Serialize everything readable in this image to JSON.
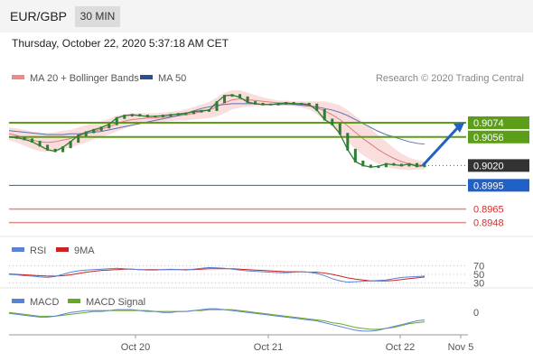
{
  "header": {
    "pair": "EUR/GBP",
    "timeframe": "30 MIN",
    "datetime": "Thursday, October 22, 2020 5:37:18 AM CET"
  },
  "legend": {
    "ma20_bb": "MA 20 + Bollinger Bands",
    "ma50": "MA 50",
    "research": "Research © 2020 Trading Central"
  },
  "colors": {
    "price": "#2e7d32",
    "ma20_band": "#f6c8c8",
    "ma20_line": "#e07c7c",
    "ma50": "#5b6fb5",
    "green_level": "#5c9e1a",
    "blue_level": "#2160c4",
    "red_level": "#e08a8a",
    "current": "#333333",
    "rsi": "#5b82d6",
    "ma9": "#cc2222",
    "macd": "#5b82d6",
    "macd_signal": "#66aa22"
  },
  "chart_data": [
    {
      "type": "line",
      "name": "price",
      "x_ticks": [
        "Oct 20",
        "Oct 21",
        "Oct 22",
        "Nov 5"
      ],
      "ylim": [
        0.8935,
        0.9115
      ],
      "price_series": [
        0.9056,
        0.9055,
        0.9053,
        0.905,
        0.9045,
        0.904,
        0.9038,
        0.9043,
        0.905,
        0.9058,
        0.9062,
        0.9065,
        0.9068,
        0.9072,
        0.908,
        0.9083,
        0.9084,
        0.9083,
        0.9082,
        0.9082,
        0.9083,
        0.9084,
        0.9085,
        0.9086,
        0.9088,
        0.9089,
        0.909,
        0.91,
        0.9108,
        0.9109,
        0.9106,
        0.91,
        0.9098,
        0.9097,
        0.9097,
        0.9098,
        0.9099,
        0.9098,
        0.9098,
        0.9097,
        0.909,
        0.9078,
        0.9072,
        0.906,
        0.904,
        0.9025,
        0.902,
        0.9018,
        0.9019,
        0.9022,
        0.9021,
        0.902,
        0.9022,
        0.9019,
        0.902
      ],
      "ma20_series": [
        0.906,
        0.9058,
        0.9055,
        0.9052,
        0.905,
        0.9049,
        0.905,
        0.9052,
        0.9054,
        0.9057,
        0.906,
        0.9063,
        0.9066,
        0.9069,
        0.9073,
        0.9076,
        0.9078,
        0.9079,
        0.908,
        0.908,
        0.9081,
        0.9082,
        0.9083,
        0.9084,
        0.9086,
        0.9088,
        0.909,
        0.9094,
        0.9099,
        0.9103,
        0.9104,
        0.9103,
        0.9102,
        0.9101,
        0.91,
        0.9099,
        0.9099,
        0.9098,
        0.9097,
        0.9096,
        0.9093,
        0.9089,
        0.9084,
        0.9078,
        0.907,
        0.9062,
        0.9054,
        0.9047,
        0.904,
        0.9034,
        0.9029,
        0.9025,
        0.9022,
        0.9021,
        0.902
      ],
      "band_width_series": [
        0.0008,
        0.0009,
        0.001,
        0.0011,
        0.0012,
        0.0012,
        0.0012,
        0.0012,
        0.0011,
        0.0011,
        0.0011,
        0.001,
        0.001,
        0.001,
        0.001,
        0.0009,
        0.0008,
        0.0007,
        0.0006,
        0.0006,
        0.0006,
        0.0006,
        0.0006,
        0.0007,
        0.0008,
        0.0009,
        0.001,
        0.0012,
        0.0013,
        0.0012,
        0.0011,
        0.0009,
        0.0007,
        0.0005,
        0.0004,
        0.0003,
        0.0003,
        0.0003,
        0.0004,
        0.0005,
        0.0008,
        0.0012,
        0.0015,
        0.0018,
        0.002,
        0.0021,
        0.0021,
        0.002,
        0.0018,
        0.0016,
        0.0013,
        0.001,
        0.0008,
        0.0006,
        0.0005
      ],
      "ma50_series": [
        0.9064,
        0.9063,
        0.9062,
        0.9061,
        0.906,
        0.9059,
        0.9059,
        0.9059,
        0.906,
        0.906,
        0.9061,
        0.9062,
        0.9063,
        0.9065,
        0.9067,
        0.9069,
        0.9071,
        0.9073,
        0.9075,
        0.9077,
        0.9079,
        0.9081,
        0.9083,
        0.9086,
        0.9089,
        0.9092,
        0.9094,
        0.9096,
        0.9097,
        0.9098,
        0.9098,
        0.9098,
        0.9098,
        0.9097,
        0.9097,
        0.9097,
        0.9097,
        0.9097,
        0.9096,
        0.9095,
        0.9094,
        0.9092,
        0.909,
        0.9087,
        0.9083,
        0.9078,
        0.9073,
        0.9068,
        0.9063,
        0.9059,
        0.9056,
        0.9053,
        0.905,
        0.9048,
        0.9047
      ],
      "levels": [
        {
          "value": "0.9074",
          "num": 0.9074,
          "kind": "green"
        },
        {
          "value": "0.9056",
          "num": 0.9056,
          "kind": "green"
        },
        {
          "value": "0.9020",
          "num": 0.902,
          "kind": "current"
        },
        {
          "value": "0.8995",
          "num": 0.8995,
          "kind": "blue"
        },
        {
          "value": "0.8965",
          "num": 0.8965,
          "kind": "red"
        },
        {
          "value": "0.8948",
          "num": 0.8948,
          "kind": "red"
        }
      ],
      "arrow": {
        "from": 0.902,
        "to": 0.9074
      }
    },
    {
      "type": "line",
      "name": "RSI",
      "legend": [
        "RSI",
        "9MA"
      ],
      "ylim": [
        25,
        75
      ],
      "ticks": [
        "70",
        "50",
        "30"
      ],
      "rsi_series": [
        50,
        49,
        47,
        46,
        44,
        43,
        45,
        50,
        55,
        58,
        60,
        61,
        62,
        63,
        64,
        63,
        62,
        61,
        60,
        60,
        61,
        62,
        61,
        60,
        62,
        64,
        66,
        65,
        64,
        62,
        60,
        58,
        57,
        56,
        55,
        54,
        54,
        55,
        56,
        55,
        52,
        47,
        40,
        35,
        32,
        33,
        34,
        35,
        36,
        37,
        40,
        43,
        44,
        45,
        46
      ],
      "ma9_series": [
        51,
        50,
        49,
        48,
        47,
        46,
        46,
        47,
        49,
        52,
        55,
        57,
        59,
        60,
        61,
        62,
        62,
        61,
        61,
        61,
        61,
        61,
        61,
        61,
        61,
        62,
        63,
        63,
        63,
        63,
        62,
        61,
        60,
        59,
        58,
        57,
        56,
        56,
        56,
        55,
        55,
        53,
        50,
        46,
        42,
        39,
        37,
        35,
        35,
        35,
        36,
        38,
        40,
        42,
        44
      ]
    },
    {
      "type": "line",
      "name": "MACD",
      "legend": [
        "MACD",
        "MACD Signal"
      ],
      "ylim": [
        -0.0022,
        0.0006
      ],
      "ticks": [
        "0"
      ],
      "macd_series": [
        -0.0001,
        -0.0002,
        -0.0003,
        -0.0004,
        -0.0005,
        -0.0005,
        -0.0004,
        -0.0002,
        0.0,
        0.0001,
        0.0002,
        0.0002,
        0.0002,
        0.0002,
        0.0003,
        0.0003,
        0.0003,
        0.0002,
        0.0001,
        0.0001,
        0.0,
        0.0,
        0.0001,
        0.0001,
        0.0002,
        0.0003,
        0.0004,
        0.0004,
        0.0003,
        0.0002,
        0.0001,
        0.0,
        -0.0001,
        -0.0002,
        -0.0003,
        -0.0004,
        -0.0005,
        -0.0006,
        -0.0007,
        -0.0008,
        -0.0009,
        -0.0011,
        -0.0013,
        -0.0015,
        -0.0017,
        -0.0019,
        -0.002,
        -0.002,
        -0.0019,
        -0.0017,
        -0.0015,
        -0.0013,
        -0.0011,
        -0.0009,
        -0.0008
      ],
      "signal_series": [
        0.0,
        -0.0001,
        -0.0002,
        -0.0003,
        -0.0004,
        -0.0004,
        -0.0004,
        -0.0003,
        -0.0002,
        -0.0001,
        0.0,
        0.0001,
        0.0001,
        0.0002,
        0.0002,
        0.0002,
        0.0002,
        0.0002,
        0.0002,
        0.0001,
        0.0001,
        0.0001,
        0.0001,
        0.0001,
        0.0002,
        0.0002,
        0.0003,
        0.0003,
        0.0003,
        0.0003,
        0.0002,
        0.0001,
        0.0,
        -0.0001,
        -0.0002,
        -0.0003,
        -0.0004,
        -0.0005,
        -0.0006,
        -0.0007,
        -0.0008,
        -0.0009,
        -0.0011,
        -0.0012,
        -0.0014,
        -0.0016,
        -0.0017,
        -0.0018,
        -0.0018,
        -0.0017,
        -0.0016,
        -0.0014,
        -0.0012,
        -0.0011,
        -0.001
      ]
    }
  ]
}
